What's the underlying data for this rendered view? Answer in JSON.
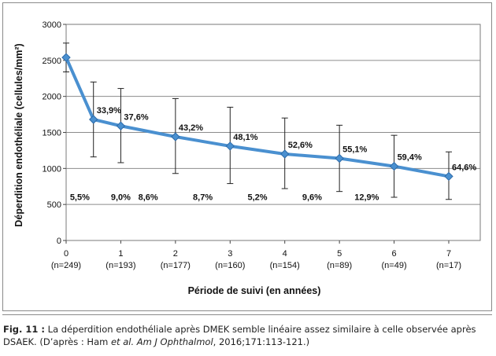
{
  "chart_data": {
    "type": "line",
    "ylabel": "Déperdition endothéliale (cellules/mm²)",
    "xlabel": "Période de suivi (en années)",
    "ylim": [
      0,
      3000
    ],
    "yticks": [
      "0",
      "500",
      "1000",
      "1500",
      "2000",
      "2500",
      "3000"
    ],
    "xlim": [
      0,
      7
    ],
    "grid": true,
    "xticks": [
      {
        "value": 0,
        "label": "0",
        "n": "(n=249)"
      },
      {
        "value": 1,
        "label": "1",
        "n": "(n=193)"
      },
      {
        "value": 2,
        "label": "2",
        "n": "(n=177)"
      },
      {
        "value": 3,
        "label": "3",
        "n": "(n=160)"
      },
      {
        "value": 4,
        "label": "4",
        "n": "(n=154)"
      },
      {
        "value": 5,
        "label": "5",
        "n": "(n=89)"
      },
      {
        "value": 6,
        "label": "6",
        "n": "(n=49)"
      },
      {
        "value": 7,
        "label": "7",
        "n": "(n=17)"
      }
    ],
    "series": [
      {
        "color": "#4a90d0",
        "points": [
          {
            "x": 0,
            "y": 2540,
            "ylow": 2340,
            "yhigh": 2740,
            "label": ""
          },
          {
            "x": 0.5,
            "y": 1680,
            "ylow": 1160,
            "yhigh": 2200,
            "label": "33,9%"
          },
          {
            "x": 1,
            "y": 1590,
            "ylow": 1080,
            "yhigh": 2110,
            "label": "37,6%"
          },
          {
            "x": 2,
            "y": 1440,
            "ylow": 930,
            "yhigh": 1970,
            "label": "43,2%"
          },
          {
            "x": 3,
            "y": 1310,
            "ylow": 790,
            "yhigh": 1850,
            "label": "48,1%"
          },
          {
            "x": 4,
            "y": 1200,
            "ylow": 720,
            "yhigh": 1700,
            "label": "52,6%"
          },
          {
            "x": 5,
            "y": 1140,
            "ylow": 680,
            "yhigh": 1600,
            "label": "55,1%"
          },
          {
            "x": 6,
            "y": 1030,
            "ylow": 600,
            "yhigh": 1460,
            "label": "59,4%"
          },
          {
            "x": 7,
            "y": 890,
            "ylow": 570,
            "yhigh": 1230,
            "label": "64,6%"
          }
        ]
      }
    ],
    "interval_annotations": [
      {
        "x": 0.25,
        "label": "5,5%"
      },
      {
        "x": 1.0,
        "label": "9,0%"
      },
      {
        "x": 1.5,
        "label": "8,6%"
      },
      {
        "x": 2.5,
        "label": "8,7%"
      },
      {
        "x": 3.5,
        "label": "5,2%"
      },
      {
        "x": 4.5,
        "label": "9,6%"
      },
      {
        "x": 5.5,
        "label": "12,9%"
      }
    ],
    "interval_annotation_y": 560
  },
  "caption": {
    "fig_label": "Fig. 11 :",
    "text_1": " La déperdition endothéliale après DMEK semble linéaire assez similaire à celle observée après DSAEK. (D’après : Ham ",
    "et_al": "et al.",
    "space": " ",
    "journal": "Am J Ophthalmol",
    "text_2": ", 2016;171:113-121.)"
  }
}
